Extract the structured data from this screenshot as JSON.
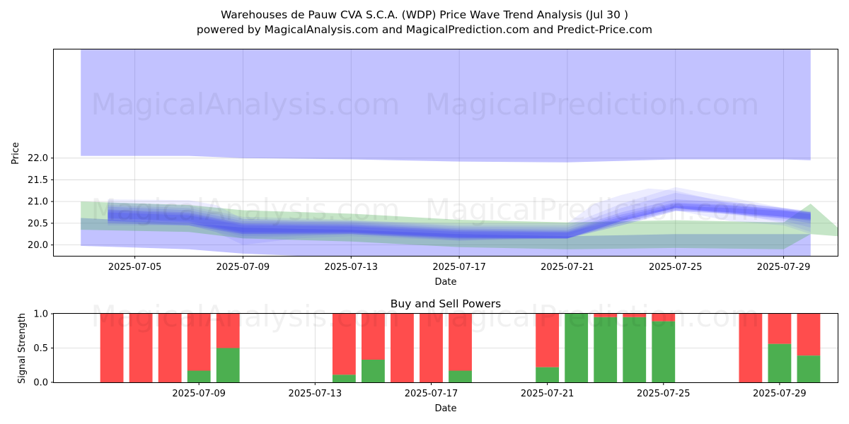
{
  "title": {
    "line1": "Warehouses de Pauw CVA S.C.A. (WDP) Price Wave Trend Analysis (Jul 30 )",
    "line2": "powered by MagicalAnalysis.com and MagicalPrediction.com and Predict-Price.com"
  },
  "watermarks": [
    "MagicalAnalysis.com",
    "MagicalPrediction.com"
  ],
  "colors": {
    "buy": "#4caf50",
    "sell": "#ff4d4d",
    "wave_blue": "#4040ff",
    "wave_green": "#4caf50"
  },
  "chart_data": [
    {
      "type": "area",
      "xlabel": "Date",
      "ylabel": "Price",
      "xlim": [
        "2025-07-02",
        "2025-07-31"
      ],
      "ylim": [
        19.75,
        24.5
      ],
      "x_ticks": [
        "2025-07-05",
        "2025-07-09",
        "2025-07-13",
        "2025-07-17",
        "2025-07-21",
        "2025-07-25",
        "2025-07-29"
      ],
      "y_ticks": [
        20.0,
        20.5,
        21.0,
        21.5,
        22.0
      ],
      "grid": true,
      "bands": [
        {
          "color": "blue",
          "opacity": 0.32,
          "points": [
            [
              "2025-07-03",
              24.5,
              22.05
            ],
            [
              "2025-07-07",
              24.5,
              22.05
            ],
            [
              "2025-07-09",
              24.5,
              22.0
            ],
            [
              "2025-07-13",
              24.5,
              21.97
            ],
            [
              "2025-07-17",
              24.5,
              21.92
            ],
            [
              "2025-07-21",
              24.5,
              21.9
            ],
            [
              "2025-07-25",
              24.5,
              21.97
            ],
            [
              "2025-07-29",
              24.5,
              21.97
            ],
            [
              "2025-07-30",
              24.5,
              21.95
            ]
          ]
        },
        {
          "color": "blue",
          "opacity": 0.32,
          "points": [
            [
              "2025-07-03",
              20.62,
              19.98
            ],
            [
              "2025-07-07",
              20.5,
              19.9
            ],
            [
              "2025-07-09",
              20.4,
              19.8
            ],
            [
              "2025-07-11",
              20.37,
              19.75
            ],
            [
              "2025-07-13",
              20.35,
              19.7
            ],
            [
              "2025-07-17",
              20.25,
              19.6
            ],
            [
              "2025-07-21",
              20.2,
              19.55
            ],
            [
              "2025-07-25",
              20.25,
              19.6
            ],
            [
              "2025-07-29",
              20.25,
              19.6
            ],
            [
              "2025-07-30",
              20.25,
              19.6
            ]
          ]
        },
        {
          "color": "green",
          "opacity": 0.32,
          "points": [
            [
              "2025-07-03",
              21.0,
              20.35
            ],
            [
              "2025-07-07",
              20.92,
              20.3
            ],
            [
              "2025-07-09",
              20.8,
              20.15
            ],
            [
              "2025-07-13",
              20.72,
              20.08
            ],
            [
              "2025-07-17",
              20.58,
              19.95
            ],
            [
              "2025-07-21",
              20.52,
              19.9
            ],
            [
              "2025-07-25",
              20.57,
              19.93
            ],
            [
              "2025-07-29",
              20.52,
              19.9
            ],
            [
              "2025-07-30",
              20.95,
              20.25
            ],
            [
              "2025-07-31",
              20.4,
              20.2
            ]
          ]
        },
        {
          "color": "blue",
          "opacity": 0.1,
          "points": [
            [
              "2025-07-04",
              21.05,
              20.45
            ],
            [
              "2025-07-07",
              21.03,
              20.45
            ],
            [
              "2025-07-08",
              20.92,
              20.3
            ],
            [
              "2025-07-09",
              20.6,
              20.0
            ],
            [
              "2025-07-11",
              20.55,
              20.15
            ],
            [
              "2025-07-13",
              20.55,
              20.2
            ],
            [
              "2025-07-17",
              20.5,
              20.1
            ],
            [
              "2025-07-21",
              20.5,
              20.2
            ],
            [
              "2025-07-22",
              20.95,
              20.45
            ],
            [
              "2025-07-23",
              21.15,
              20.6
            ],
            [
              "2025-07-24",
              21.3,
              20.75
            ],
            [
              "2025-07-25",
              21.25,
              20.8
            ],
            [
              "2025-07-27",
              20.95,
              20.55
            ],
            [
              "2025-07-29",
              20.8,
              20.45
            ],
            [
              "2025-07-30",
              20.7,
              20.25
            ]
          ]
        },
        {
          "color": "blue",
          "opacity": 0.1,
          "points": [
            [
              "2025-07-04",
              20.98,
              20.55
            ],
            [
              "2025-07-07",
              20.9,
              20.45
            ],
            [
              "2025-07-09",
              20.65,
              20.15
            ],
            [
              "2025-07-13",
              20.58,
              20.25
            ],
            [
              "2025-07-17",
              20.45,
              20.1
            ],
            [
              "2025-07-21",
              20.45,
              20.15
            ],
            [
              "2025-07-23",
              20.95,
              20.5
            ],
            [
              "2025-07-25",
              21.33,
              20.85
            ],
            [
              "2025-07-27",
              21.1,
              20.75
            ],
            [
              "2025-07-29",
              20.85,
              20.5
            ],
            [
              "2025-07-30",
              20.75,
              20.3
            ]
          ]
        },
        {
          "color": "blue",
          "opacity": 0.12,
          "points": [
            [
              "2025-07-04",
              20.92,
              20.58
            ],
            [
              "2025-07-07",
              20.85,
              20.5
            ],
            [
              "2025-07-09",
              20.6,
              20.2
            ],
            [
              "2025-07-13",
              20.55,
              20.25
            ],
            [
              "2025-07-17",
              20.42,
              20.12
            ],
            [
              "2025-07-21",
              20.4,
              20.15
            ],
            [
              "2025-07-23",
              20.85,
              20.55
            ],
            [
              "2025-07-25",
              21.2,
              20.85
            ],
            [
              "2025-07-27",
              21.0,
              20.7
            ],
            [
              "2025-07-29",
              20.85,
              20.55
            ],
            [
              "2025-07-30",
              20.75,
              20.4
            ]
          ]
        },
        {
          "color": "blue",
          "opacity": 0.16,
          "points": [
            [
              "2025-07-04",
              20.88,
              20.6
            ],
            [
              "2025-07-07",
              20.8,
              20.52
            ],
            [
              "2025-07-09",
              20.55,
              20.25
            ],
            [
              "2025-07-13",
              20.52,
              20.28
            ],
            [
              "2025-07-17",
              20.38,
              20.15
            ],
            [
              "2025-07-21",
              20.35,
              20.15
            ],
            [
              "2025-07-23",
              20.75,
              20.55
            ],
            [
              "2025-07-25",
              21.05,
              20.85
            ],
            [
              "2025-07-27",
              20.98,
              20.72
            ],
            [
              "2025-07-29",
              20.85,
              20.6
            ],
            [
              "2025-07-30",
              20.78,
              20.5
            ]
          ]
        },
        {
          "color": "blue",
          "opacity": 0.18,
          "points": [
            [
              "2025-07-04",
              20.82,
              20.62
            ],
            [
              "2025-07-07",
              20.75,
              20.55
            ],
            [
              "2025-07-09",
              20.5,
              20.3
            ],
            [
              "2025-07-13",
              20.48,
              20.3
            ],
            [
              "2025-07-17",
              20.35,
              20.18
            ],
            [
              "2025-07-21",
              20.32,
              20.15
            ],
            [
              "2025-07-23",
              20.7,
              20.55
            ],
            [
              "2025-07-25",
              20.98,
              20.85
            ],
            [
              "2025-07-27",
              20.92,
              20.75
            ],
            [
              "2025-07-29",
              20.82,
              20.65
            ],
            [
              "2025-07-30",
              20.75,
              20.55
            ]
          ]
        },
        {
          "color": "blue",
          "opacity": 0.2,
          "points": [
            [
              "2025-07-04",
              20.8,
              20.55
            ],
            [
              "2025-07-07",
              20.72,
              20.5
            ],
            [
              "2025-07-09",
              20.48,
              20.28
            ],
            [
              "2025-07-13",
              20.45,
              20.28
            ],
            [
              "2025-07-17",
              20.33,
              20.18
            ],
            [
              "2025-07-21",
              20.3,
              20.15
            ],
            [
              "2025-07-23",
              20.65,
              20.5
            ],
            [
              "2025-07-25",
              20.95,
              20.8
            ],
            [
              "2025-07-27",
              20.9,
              20.75
            ],
            [
              "2025-07-29",
              20.8,
              20.65
            ],
            [
              "2025-07-30",
              20.75,
              20.6
            ]
          ]
        },
        {
          "color": "blue",
          "opacity": 0.22,
          "points": [
            [
              "2025-07-04",
              20.75,
              20.5
            ],
            [
              "2025-07-07",
              20.68,
              20.45
            ],
            [
              "2025-07-09",
              20.45,
              20.25
            ],
            [
              "2025-07-13",
              20.42,
              20.25
            ],
            [
              "2025-07-17",
              20.3,
              20.15
            ],
            [
              "2025-07-21",
              20.28,
              20.15
            ],
            [
              "2025-07-23",
              20.6,
              20.45
            ],
            [
              "2025-07-25",
              20.9,
              20.78
            ],
            [
              "2025-07-27",
              20.85,
              20.72
            ],
            [
              "2025-07-29",
              20.78,
              20.62
            ],
            [
              "2025-07-30",
              20.72,
              20.58
            ]
          ]
        }
      ]
    },
    {
      "type": "bar",
      "title": "Buy and Sell Powers",
      "xlabel": "Date",
      "ylabel": "Signal Strength",
      "ylim": [
        0,
        1
      ],
      "xlim": [
        "2025-07-04",
        "2025-07-31"
      ],
      "x_ticks": [
        "2025-07-09",
        "2025-07-13",
        "2025-07-17",
        "2025-07-21",
        "2025-07-25",
        "2025-07-29"
      ],
      "y_ticks": [
        0.0,
        0.5,
        1.0
      ],
      "grid": true,
      "series": [
        {
          "name": "buy",
          "color": "#4caf50"
        },
        {
          "name": "sell",
          "color": "#ff4d4d"
        }
      ],
      "bars": [
        {
          "date": "2025-07-06",
          "buy": 0.0
        },
        {
          "date": "2025-07-07",
          "buy": 0.0
        },
        {
          "date": "2025-07-08",
          "buy": 0.0
        },
        {
          "date": "2025-07-09",
          "buy": 0.17
        },
        {
          "date": "2025-07-10",
          "buy": 0.5
        },
        {
          "date": "2025-07-14",
          "buy": 0.11
        },
        {
          "date": "2025-07-15",
          "buy": 0.33
        },
        {
          "date": "2025-07-16",
          "buy": 0.0
        },
        {
          "date": "2025-07-17",
          "buy": 0.0
        },
        {
          "date": "2025-07-18",
          "buy": 0.17
        },
        {
          "date": "2025-07-21",
          "buy": 0.22
        },
        {
          "date": "2025-07-22",
          "buy": 1.0
        },
        {
          "date": "2025-07-23",
          "buy": 0.95
        },
        {
          "date": "2025-07-24",
          "buy": 0.95
        },
        {
          "date": "2025-07-25",
          "buy": 0.89
        },
        {
          "date": "2025-07-28",
          "buy": 0.0
        },
        {
          "date": "2025-07-29",
          "buy": 0.56
        },
        {
          "date": "2025-07-30",
          "buy": 0.39
        }
      ]
    }
  ]
}
